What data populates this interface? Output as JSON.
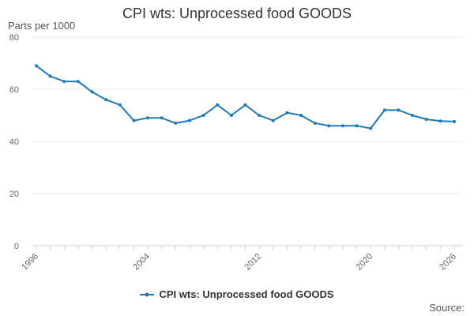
{
  "chart_data": {
    "type": "line",
    "title": "CPI wts: Unprocessed food GOODS",
    "ylabel": "Parts per 1000",
    "xlabel": "",
    "ylim": [
      0,
      80
    ],
    "xlim": [
      1996,
      2026
    ],
    "y_ticks": [
      0,
      20,
      40,
      60,
      80
    ],
    "x_ticks": [
      1996,
      2004,
      2012,
      2020,
      2026
    ],
    "x_tick_labels": [
      "1996",
      "2004",
      "2012",
      "2020",
      "2026"
    ],
    "grid": true,
    "legend": "bottom-center",
    "series": [
      {
        "name": "CPI wts: Unprocessed food GOODS",
        "color": "#1f7ab8",
        "x": [
          1996,
          1997,
          1998,
          1999,
          2000,
          2001,
          2002,
          2003,
          2004,
          2005,
          2006,
          2007,
          2008,
          2009,
          2010,
          2011,
          2012,
          2013,
          2014,
          2015,
          2016,
          2017,
          2018,
          2019,
          2020,
          2021,
          2022,
          2023,
          2024,
          2025,
          2026
        ],
        "values": [
          69,
          65,
          63,
          63,
          59,
          56,
          54,
          48,
          49,
          49,
          47,
          48,
          50,
          54,
          50,
          54,
          50,
          48,
          51,
          50,
          47,
          46,
          46,
          46,
          45,
          52,
          52,
          50,
          48.5,
          47.8,
          47.6
        ]
      }
    ]
  },
  "legend_label": "CPI wts: Unprocessed food GOODS",
  "source_label": "Source:",
  "colors": {
    "grid": "#e6e6e6",
    "axis": "#cccccc",
    "line": "#1f7ab8"
  }
}
